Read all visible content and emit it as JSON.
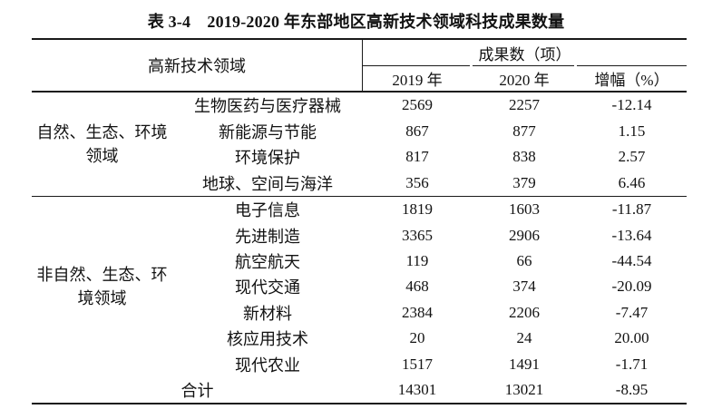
{
  "title": "表 3-4　2019-2020 年东部地区高新技术领域科技成果数量",
  "table": {
    "header": {
      "field_col": "高新技术领域",
      "results_group": "成果数（项）",
      "col_2019": "2019 年",
      "col_2020": "2020 年",
      "col_growth": "增幅（%）"
    },
    "groups": [
      {
        "label_line1": "自然、生态、环境",
        "label_line2": "领域",
        "rows": [
          {
            "field": "生物医药与医疗器械",
            "y2019": "2569",
            "y2020": "2257",
            "growth": "-12.14"
          },
          {
            "field": "新能源与节能",
            "y2019": "867",
            "y2020": "877",
            "growth": "1.15"
          },
          {
            "field": "环境保护",
            "y2019": "817",
            "y2020": "838",
            "growth": "2.57"
          },
          {
            "field": "地球、空间与海洋",
            "y2019": "356",
            "y2020": "379",
            "growth": "6.46"
          }
        ]
      },
      {
        "label_line1": "非自然、生态、环",
        "label_line2": "境领域",
        "rows": [
          {
            "field": "电子信息",
            "y2019": "1819",
            "y2020": "1603",
            "growth": "-11.87"
          },
          {
            "field": "先进制造",
            "y2019": "3365",
            "y2020": "2906",
            "growth": "-13.64"
          },
          {
            "field": "航空航天",
            "y2019": "119",
            "y2020": "66",
            "growth": "-44.54"
          },
          {
            "field": "现代交通",
            "y2019": "468",
            "y2020": "374",
            "growth": "-20.09"
          },
          {
            "field": "新材料",
            "y2019": "2384",
            "y2020": "2206",
            "growth": "-7.47"
          },
          {
            "field": "核应用技术",
            "y2019": "20",
            "y2020": "24",
            "growth": "20.00"
          },
          {
            "field": "现代农业",
            "y2019": "1517",
            "y2020": "1491",
            "growth": "-1.71"
          }
        ]
      }
    ],
    "total": {
      "label": "合计",
      "y2019": "14301",
      "y2020": "13021",
      "growth": "-8.95"
    }
  }
}
